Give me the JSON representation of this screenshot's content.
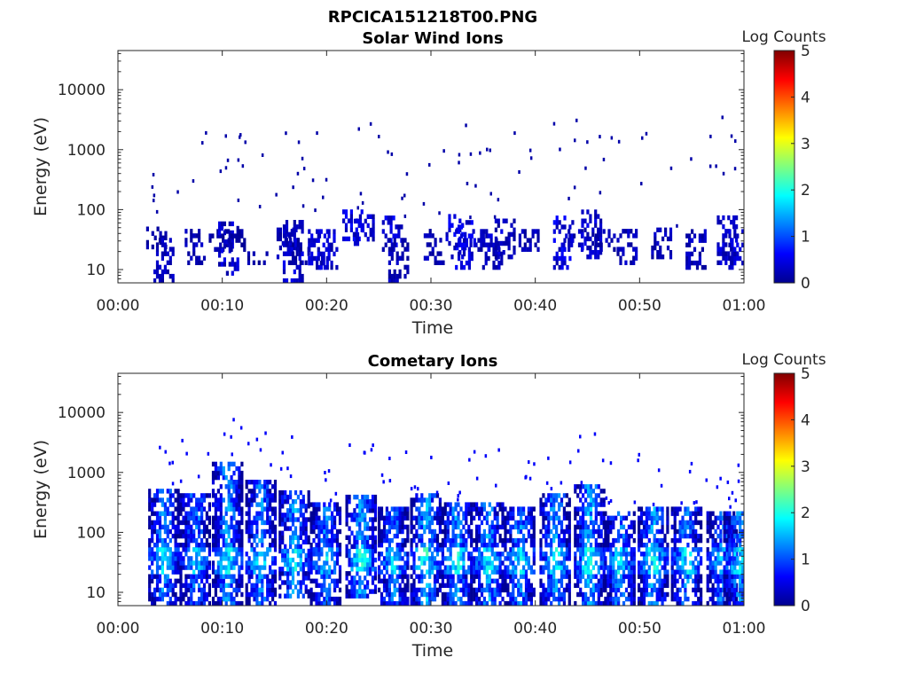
{
  "figure": {
    "title": "RPCICA151218T00.PNG"
  },
  "chart_data": [
    {
      "type": "heatmap",
      "title": "Solar Wind Ions",
      "xlabel": "Time",
      "ylabel": "Energy (eV)",
      "x_ticks": [
        "00:00",
        "00:10",
        "00:20",
        "00:30",
        "00:40",
        "00:50",
        "01:00"
      ],
      "xlim_minutes": [
        0,
        60
      ],
      "y_scale": "log",
      "y_ticks": [
        "10",
        "100",
        "1000",
        "10000"
      ],
      "ylim": [
        6,
        45000
      ],
      "colorbar": {
        "label": "Log Counts",
        "ticks": [
          "0",
          "1",
          "2",
          "3",
          "4",
          "5"
        ],
        "range": [
          0,
          5
        ],
        "colormap": "jet"
      },
      "grid": false,
      "colors": {
        "dominant": "#00008f",
        "secondary": "#0000c8"
      },
      "events": [
        {
          "t": 3.6,
          "e_lo": 22,
          "e_hi": 45,
          "v": 0.2
        },
        {
          "t": 4.3,
          "e_lo": 6,
          "e_hi": 30,
          "v": 0.3
        },
        {
          "t": 7.3,
          "e_lo": 12,
          "e_hi": 45,
          "v": 0.3
        },
        {
          "t": 9.6,
          "e_lo": 20,
          "e_hi": 45,
          "v": 0.2
        },
        {
          "t": 10.5,
          "e_lo": 8,
          "e_hi": 60,
          "v": 0.4
        },
        {
          "t": 11.4,
          "e_lo": 20,
          "e_hi": 45,
          "v": 0.2
        },
        {
          "t": 13.3,
          "e_lo": 12,
          "e_hi": 20,
          "v": 0.2
        },
        {
          "t": 16.1,
          "e_lo": 15,
          "e_hi": 45,
          "v": 0.3
        },
        {
          "t": 16.7,
          "e_lo": 6,
          "e_hi": 60,
          "v": 0.4
        },
        {
          "t": 17.3,
          "e_lo": 12,
          "e_hi": 30,
          "v": 0.2
        },
        {
          "t": 19.1,
          "e_lo": 10,
          "e_hi": 45,
          "v": 0.4
        },
        {
          "t": 20.0,
          "e_lo": 10,
          "e_hi": 45,
          "v": 0.4
        },
        {
          "t": 22.4,
          "e_lo": 30,
          "e_hi": 90,
          "v": 0.5
        },
        {
          "t": 23.5,
          "e_lo": 25,
          "e_hi": 80,
          "v": 0.4
        },
        {
          "t": 26.2,
          "e_lo": 20,
          "e_hi": 70,
          "v": 0.5
        },
        {
          "t": 26.8,
          "e_lo": 6,
          "e_hi": 30,
          "v": 0.3
        },
        {
          "t": 30.2,
          "e_lo": 12,
          "e_hi": 45,
          "v": 0.3
        },
        {
          "t": 32.3,
          "e_lo": 15,
          "e_hi": 80,
          "v": 0.5
        },
        {
          "t": 33.2,
          "e_lo": 10,
          "e_hi": 60,
          "v": 0.5
        },
        {
          "t": 34.6,
          "e_lo": 20,
          "e_hi": 45,
          "v": 0.3
        },
        {
          "t": 35.8,
          "e_lo": 10,
          "e_hi": 45,
          "v": 0.4
        },
        {
          "t": 37.0,
          "e_lo": 15,
          "e_hi": 60,
          "v": 0.3
        },
        {
          "t": 39.3,
          "e_lo": 20,
          "e_hi": 45,
          "v": 0.3
        },
        {
          "t": 42.6,
          "e_lo": 10,
          "e_hi": 70,
          "v": 0.5
        },
        {
          "t": 43.5,
          "e_lo": 20,
          "e_hi": 45,
          "v": 0.3
        },
        {
          "t": 45.3,
          "e_lo": 15,
          "e_hi": 90,
          "v": 0.4
        },
        {
          "t": 46.6,
          "e_lo": 20,
          "e_hi": 45,
          "v": 0.3
        },
        {
          "t": 48.7,
          "e_lo": 12,
          "e_hi": 45,
          "v": 0.3
        },
        {
          "t": 52.0,
          "e_lo": 15,
          "e_hi": 45,
          "v": 0.3
        },
        {
          "t": 55.3,
          "e_lo": 10,
          "e_hi": 45,
          "v": 0.3
        },
        {
          "t": 58.3,
          "e_lo": 12,
          "e_hi": 80,
          "v": 0.4
        },
        {
          "t": 59.4,
          "e_lo": 10,
          "e_hi": 45,
          "v": 0.4
        }
      ]
    },
    {
      "type": "heatmap",
      "title": "Cometary Ions",
      "xlabel": "Time",
      "ylabel": "Energy (eV)",
      "x_ticks": [
        "00:00",
        "00:10",
        "00:20",
        "00:30",
        "00:40",
        "00:50",
        "01:00"
      ],
      "xlim_minutes": [
        0,
        60
      ],
      "y_scale": "log",
      "y_ticks": [
        "10",
        "100",
        "1000",
        "10000"
      ],
      "ylim": [
        6,
        45000
      ],
      "colorbar": {
        "label": "Log Counts",
        "ticks": [
          "0",
          "1",
          "2",
          "3",
          "4",
          "5"
        ],
        "range": [
          0,
          5
        ],
        "colormap": "jet"
      },
      "grid": false,
      "colors": {
        "dominant": "#0050ff",
        "peak": "#20d0ff"
      },
      "events": [
        {
          "t": 4.3,
          "e_lo": 6,
          "e_hi": 500,
          "v": 1.7
        },
        {
          "t": 7.3,
          "e_lo": 6,
          "e_hi": 400,
          "v": 1.6
        },
        {
          "t": 10.4,
          "e_lo": 6,
          "e_hi": 1500,
          "v": 1.8
        },
        {
          "t": 13.6,
          "e_lo": 6,
          "e_hi": 700,
          "v": 1.7
        },
        {
          "t": 16.8,
          "e_lo": 8,
          "e_hi": 500,
          "v": 1.8
        },
        {
          "t": 19.8,
          "e_lo": 6,
          "e_hi": 300,
          "v": 1.6
        },
        {
          "t": 23.2,
          "e_lo": 8,
          "e_hi": 400,
          "v": 1.9
        },
        {
          "t": 26.3,
          "e_lo": 6,
          "e_hi": 250,
          "v": 1.6
        },
        {
          "t": 29.4,
          "e_lo": 6,
          "e_hi": 400,
          "v": 1.9
        },
        {
          "t": 32.4,
          "e_lo": 6,
          "e_hi": 300,
          "v": 1.8
        },
        {
          "t": 35.4,
          "e_lo": 6,
          "e_hi": 300,
          "v": 1.8
        },
        {
          "t": 38.4,
          "e_lo": 6,
          "e_hi": 250,
          "v": 1.7
        },
        {
          "t": 41.8,
          "e_lo": 6,
          "e_hi": 400,
          "v": 1.8
        },
        {
          "t": 45.1,
          "e_lo": 6,
          "e_hi": 600,
          "v": 1.9
        },
        {
          "t": 48.0,
          "e_lo": 6,
          "e_hi": 200,
          "v": 1.7
        },
        {
          "t": 51.2,
          "e_lo": 6,
          "e_hi": 250,
          "v": 1.8
        },
        {
          "t": 54.4,
          "e_lo": 6,
          "e_hi": 250,
          "v": 1.7
        },
        {
          "t": 57.8,
          "e_lo": 6,
          "e_hi": 200,
          "v": 1.6
        },
        {
          "t": 59.4,
          "e_lo": 6,
          "e_hi": 200,
          "v": 1.7
        }
      ]
    }
  ]
}
